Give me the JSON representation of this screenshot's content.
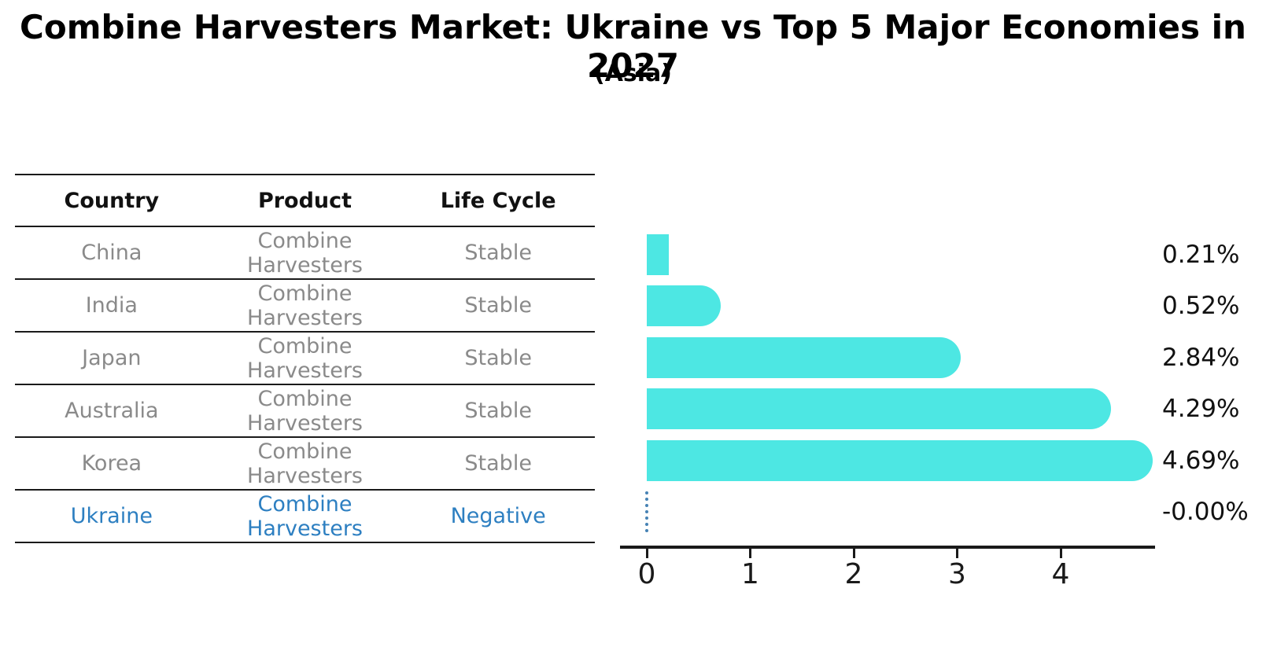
{
  "page": {
    "title": "Combine Harvesters Market: Ukraine vs Top 5 Major Economies in 2027",
    "subtitle": "(Asia)"
  },
  "table": {
    "headers": [
      "Country",
      "Product",
      "Life Cycle"
    ],
    "rows": [
      {
        "country": "China",
        "product": "Combine Harvesters",
        "life_cycle": "Stable",
        "highlighted": false
      },
      {
        "country": "India",
        "product": "Combine Harvesters",
        "life_cycle": "Stable",
        "highlighted": false
      },
      {
        "country": "Japan",
        "product": "Combine Harvesters",
        "life_cycle": "Stable",
        "highlighted": false
      },
      {
        "country": "Australia",
        "product": "Combine Harvesters",
        "life_cycle": "Stable",
        "highlighted": false
      },
      {
        "country": "Korea",
        "product": "Combine Harvesters",
        "life_cycle": "Stable",
        "highlighted": false
      },
      {
        "country": "Ukraine",
        "product": "Combine Harvesters",
        "life_cycle": "Negative",
        "highlighted": true
      }
    ],
    "highlight_color": "#2d7fc1",
    "body_text_color": "#8a8a8a"
  },
  "chart_data": {
    "type": "bar",
    "orientation": "horizontal",
    "title": "",
    "xlabel": "",
    "ylabel": "",
    "categories": [
      "China",
      "India",
      "Japan",
      "Australia",
      "Korea",
      "Ukraine"
    ],
    "values": [
      0.21,
      0.52,
      2.84,
      4.29,
      4.69,
      -0.0
    ],
    "value_labels": [
      "0.21%",
      "0.52%",
      "2.84%",
      "4.29%",
      "4.69%",
      "-0.00%"
    ],
    "x_ticks": [
      0,
      1,
      2,
      3,
      4
    ],
    "xlim": [
      0,
      4.91
    ],
    "grid": false,
    "legend": "none",
    "bar_color": "#4DE7E3",
    "zero_marker_color": "#4682b4",
    "zero_marker_style": "dotted"
  }
}
